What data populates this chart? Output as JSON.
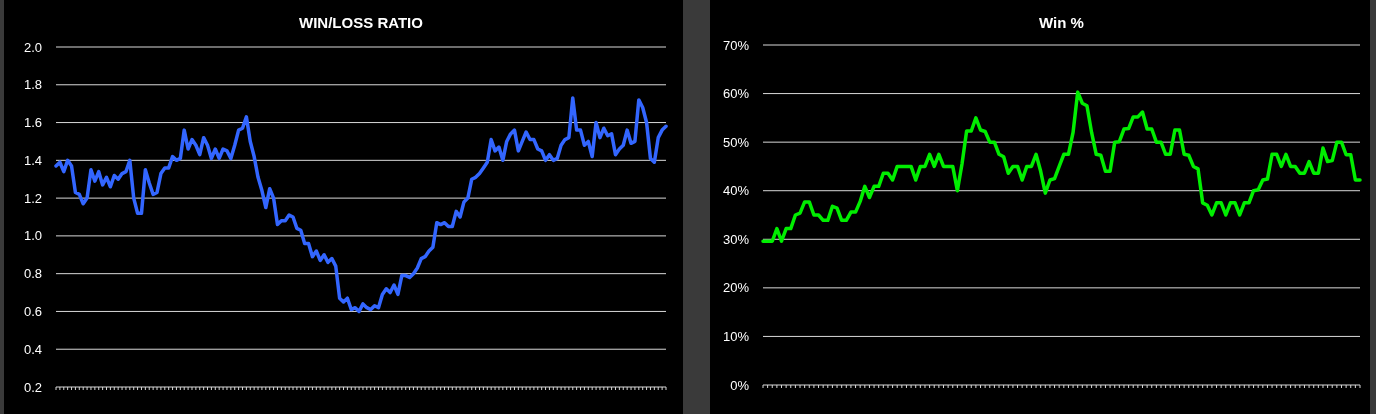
{
  "chart_data": [
    {
      "type": "line",
      "title": "WIN/LOSS RATIO",
      "grid": "y",
      "tick_labels": "y",
      "ylim": [
        0.2,
        2.0
      ],
      "yticks": [
        {
          "value": 0.2,
          "label": "0.2"
        },
        {
          "value": 0.4,
          "label": "0.4"
        },
        {
          "value": 0.6,
          "label": "0.6"
        },
        {
          "value": 0.8,
          "label": "0.8"
        },
        {
          "value": 1.0,
          "label": "1.0"
        },
        {
          "value": 1.2,
          "label": "1.2"
        },
        {
          "value": 1.4,
          "label": "1.4"
        },
        {
          "value": 1.6,
          "label": "1.6"
        },
        {
          "value": 1.8,
          "label": "1.8"
        },
        {
          "value": 2.0,
          "label": "2.0"
        }
      ],
      "categories": [
        null,
        null,
        null,
        null,
        null,
        null,
        null,
        null,
        null,
        null,
        null,
        null,
        null,
        null,
        null,
        null,
        null,
        null,
        null,
        null,
        null,
        null,
        null,
        null,
        null,
        null,
        null,
        null,
        null,
        null,
        null,
        null,
        null,
        null,
        null,
        null,
        null,
        null,
        null,
        null,
        null,
        null,
        null,
        null,
        null,
        null,
        null,
        null,
        null,
        null,
        null,
        null,
        null,
        null,
        null,
        null,
        null,
        null,
        null,
        null,
        null,
        null,
        null,
        null,
        null,
        null,
        null,
        null,
        null,
        null,
        null,
        null,
        null,
        null,
        null,
        null,
        null,
        null,
        null,
        null,
        null,
        null,
        null,
        null,
        null,
        null,
        null,
        null,
        null,
        null,
        null,
        null,
        null,
        null,
        null,
        null,
        null,
        null,
        null,
        null,
        null,
        null,
        null,
        null,
        null,
        null,
        null,
        null,
        null,
        null,
        null,
        null,
        null,
        null,
        null,
        null,
        null,
        null,
        null,
        null,
        null,
        null,
        null,
        null,
        null,
        null,
        null,
        null,
        null,
        null,
        null,
        null,
        null,
        null,
        null,
        null,
        null,
        null,
        null,
        null,
        null,
        null,
        null,
        null,
        null,
        null,
        null,
        null,
        null,
        null,
        null,
        null,
        null,
        null,
        null,
        null,
        null,
        null
      ],
      "series": [
        {
          "color": "#3366ff",
          "values": [
            1.37,
            1.39,
            1.34,
            1.4,
            1.37,
            1.23,
            1.22,
            1.17,
            1.2,
            1.35,
            1.29,
            1.34,
            1.27,
            1.31,
            1.26,
            1.32,
            1.3,
            1.33,
            1.34,
            1.4,
            1.2,
            1.12,
            1.12,
            1.35,
            1.28,
            1.22,
            1.23,
            1.33,
            1.36,
            1.36,
            1.42,
            1.4,
            1.41,
            1.56,
            1.46,
            1.51,
            1.48,
            1.43,
            1.52,
            1.48,
            1.41,
            1.46,
            1.41,
            1.46,
            1.45,
            1.41,
            1.48,
            1.56,
            1.57,
            1.63,
            1.5,
            1.42,
            1.31,
            1.24,
            1.15,
            1.25,
            1.2,
            1.06,
            1.08,
            1.08,
            1.11,
            1.1,
            1.04,
            1.03,
            0.96,
            0.96,
            0.89,
            0.92,
            0.87,
            0.9,
            0.86,
            0.88,
            0.84,
            0.67,
            0.65,
            0.67,
            0.61,
            0.62,
            0.6,
            0.64,
            0.62,
            0.61,
            0.63,
            0.62,
            0.69,
            0.72,
            0.7,
            0.74,
            0.69,
            0.79,
            0.79,
            0.78,
            0.8,
            0.83,
            0.88,
            0.89,
            0.92,
            0.94,
            1.07,
            1.06,
            1.07,
            1.05,
            1.05,
            1.13,
            1.1,
            1.18,
            1.2,
            1.3,
            1.31,
            1.33,
            1.36,
            1.39,
            1.51,
            1.45,
            1.47,
            1.4,
            1.5,
            1.54,
            1.56,
            1.45,
            1.5,
            1.55,
            1.51,
            1.51,
            1.46,
            1.45,
            1.4,
            1.43,
            1.4,
            1.41,
            1.48,
            1.51,
            1.52,
            1.73,
            1.56,
            1.56,
            1.48,
            1.5,
            1.42,
            1.6,
            1.52,
            1.57,
            1.53,
            1.54,
            1.43,
            1.46,
            1.48,
            1.56,
            1.49,
            1.5,
            1.72,
            1.68,
            1.6,
            1.41,
            1.39,
            1.52,
            1.56,
            1.58
          ]
        }
      ]
    },
    {
      "type": "line",
      "title": "Win %",
      "grid": "y",
      "tick_labels": "y",
      "ylim": [
        0,
        70
      ],
      "yticks": [
        {
          "value": 0,
          "label": "0%"
        },
        {
          "value": 10,
          "label": "10%"
        },
        {
          "value": 20,
          "label": "20%"
        },
        {
          "value": 30,
          "label": "30%"
        },
        {
          "value": 40,
          "label": "40%"
        },
        {
          "value": 50,
          "label": "50%"
        },
        {
          "value": 60,
          "label": "60%"
        },
        {
          "value": 70,
          "label": "70%"
        }
      ],
      "categories": [
        null,
        null,
        null,
        null,
        null,
        null,
        null,
        null,
        null,
        null,
        null,
        null,
        null,
        null,
        null,
        null,
        null,
        null,
        null,
        null,
        null,
        null,
        null,
        null,
        null,
        null,
        null,
        null,
        null,
        null,
        null,
        null,
        null,
        null,
        null,
        null,
        null,
        null,
        null,
        null,
        null,
        null,
        null,
        null,
        null,
        null,
        null,
        null,
        null,
        null,
        null,
        null,
        null,
        null,
        null,
        null,
        null,
        null,
        null,
        null,
        null,
        null,
        null,
        null,
        null,
        null,
        null,
        null,
        null,
        null,
        null,
        null,
        null,
        null,
        null,
        null,
        null,
        null,
        null,
        null,
        null,
        null,
        null,
        null,
        null,
        null,
        null,
        null,
        null,
        null,
        null,
        null,
        null,
        null,
        null,
        null,
        null,
        null,
        null,
        null,
        null,
        null,
        null,
        null,
        null,
        null,
        null,
        null,
        null,
        null,
        null,
        null,
        null,
        null,
        null,
        null,
        null,
        null,
        null,
        null,
        null,
        null,
        null,
        null,
        null,
        null,
        null,
        null,
        null,
        null
      ],
      "series": [
        {
          "color": "#00ee00",
          "values": [
            29.6,
            29.6,
            29.6,
            32.2,
            29.6,
            32.2,
            32.2,
            35,
            35.4,
            37.7,
            37.7,
            35,
            35,
            33.9,
            33.9,
            36.8,
            36.4,
            33.9,
            33.9,
            35.6,
            35.6,
            37.8,
            40.9,
            38.6,
            40.9,
            40.9,
            43.6,
            43.6,
            42.2,
            45,
            45,
            45,
            45,
            42.2,
            45,
            45,
            47.5,
            45,
            47.5,
            45,
            45,
            45,
            40,
            45.5,
            52.3,
            52.3,
            55,
            52.5,
            52.2,
            50,
            50,
            47.5,
            47,
            43.6,
            45,
            45,
            42.2,
            45,
            45,
            47.5,
            44,
            39.5,
            42.2,
            42.5,
            45,
            47.5,
            47.5,
            52,
            60.3,
            58,
            57.5,
            52,
            47.5,
            47.3,
            44,
            44,
            50,
            50.1,
            52.7,
            52.8,
            55.2,
            55.2,
            56.2,
            52.7,
            52.7,
            50,
            50,
            47.5,
            47.5,
            52.5,
            52.5,
            47.5,
            47.3,
            45,
            44.5,
            37.5,
            37,
            35,
            37.5,
            37.5,
            35,
            37.5,
            37.5,
            35,
            37.5,
            37.5,
            40,
            40.2,
            42.2,
            42.4,
            47.5,
            47.5,
            45,
            47.5,
            45,
            45,
            43.6,
            43.6,
            46,
            43.6,
            43.6,
            48.8,
            46,
            46.2,
            50,
            50,
            47.4,
            47.4,
            42.2,
            42.2
          ]
        }
      ]
    }
  ]
}
